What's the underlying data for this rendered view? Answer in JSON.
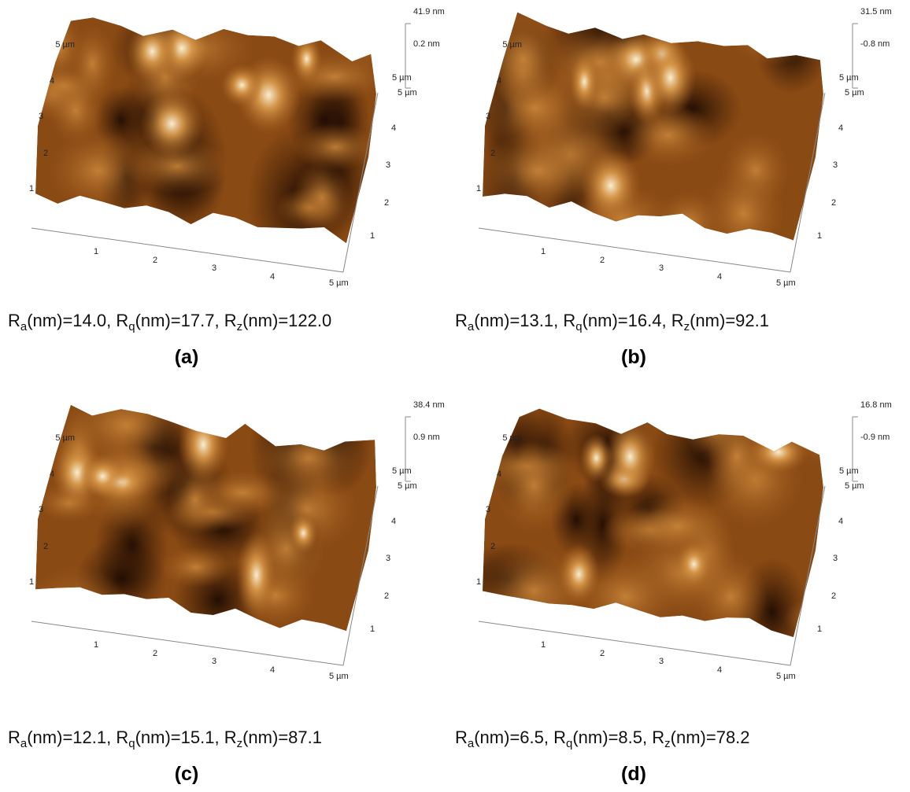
{
  "axis_labels": {
    "x": [
      "1",
      "2",
      "3",
      "4",
      "5 µm"
    ],
    "y": [
      "1",
      "2",
      "3",
      "4",
      "5 µm"
    ],
    "side": [
      "1",
      "2",
      "3",
      "4",
      "5 µm"
    ],
    "corner": "5 µm"
  },
  "panels": [
    {
      "label": "(a)",
      "z_max": "41.9 nm",
      "z_mid": "0.2 nm",
      "separator": ", ",
      "roughness": [
        {
          "symbol": "R",
          "sub": "a",
          "text": "(nm)=14.0"
        },
        {
          "symbol": "R",
          "sub": "q",
          "text": "(nm)=17.7"
        },
        {
          "symbol": "R",
          "sub": "z",
          "text": "(nm)=122.0"
        }
      ]
    },
    {
      "label": "(b)",
      "z_max": "31.5 nm",
      "z_mid": "-0.8 nm",
      "separator": ", ",
      "roughness": [
        {
          "symbol": "R",
          "sub": "a",
          "text": "(nm)=13.1"
        },
        {
          "symbol": "R",
          "sub": "q",
          "text": "(nm)=16.4"
        },
        {
          "symbol": "R",
          "sub": "z",
          "text": "(nm)=92.1"
        }
      ]
    },
    {
      "label": "(c)",
      "z_max": "38.4 nm",
      "z_mid": "0.9 nm",
      "separator": ", ",
      "roughness": [
        {
          "symbol": "R",
          "sub": "a",
          "text": "(nm)=12.1"
        },
        {
          "symbol": "R",
          "sub": "q",
          "text": "(nm)=15.1"
        },
        {
          "symbol": "R",
          "sub": "z",
          "text": "(nm)=87.1"
        }
      ]
    },
    {
      "label": "(d)",
      "z_max": "16.8 nm",
      "z_mid": "-0.9 nm",
      "separator": ", ",
      "roughness": [
        {
          "symbol": "R",
          "sub": "a",
          "text": "(nm)=6.5"
        },
        {
          "symbol": "R",
          "sub": "q",
          "text": "(nm)=8.5"
        },
        {
          "symbol": "R",
          "sub": "z",
          "text": "(nm)=78.2"
        }
      ]
    }
  ]
}
